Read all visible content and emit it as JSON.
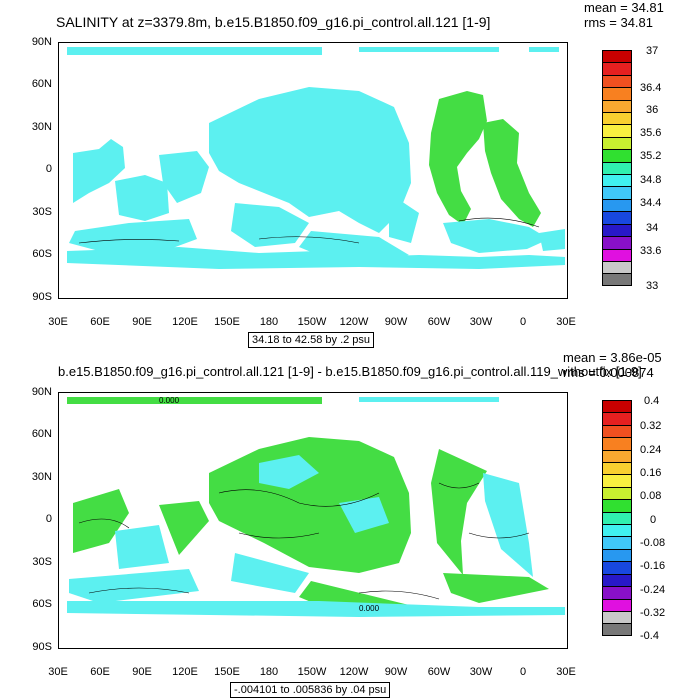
{
  "top": {
    "title": "SALINITY at z=3379.8m, b.e15.B1850.f09_g16.pi_control.all.121 [1-9]",
    "mean": "mean = 34.81",
    "rms": "rms = 34.81",
    "range": "34.18 to 42.58 by .2 psu",
    "legend_labels": [
      "37",
      "36.4",
      "36",
      "35.6",
      "35.2",
      "34.8",
      "34.4",
      "34",
      "33.6",
      "33"
    ],
    "legend_colors": [
      "#c80000",
      "#e62020",
      "#f05020",
      "#f88020",
      "#f8a830",
      "#f8d030",
      "#f8f040",
      "#c8f030",
      "#30e030",
      "#30f0b0",
      "#40f0f0",
      "#40c8f8",
      "#2898f0",
      "#1848e0",
      "#2818c8",
      "#8810c8",
      "#e010e0",
      "#c8c8c8",
      "#787878"
    ],
    "water_color": "#5cf0f0",
    "accent_color": "#44dd44"
  },
  "bottom": {
    "title": "b.e15.B1850.f09_g16.pi_control.all.121 [1-9] - b.e15.B1850.f09_g16.pi_control.all.119_withoutfix [1-9]",
    "mean": "mean = 3.86e-05",
    "rms": "rms = 0.000874",
    "range": "-.004101 to .005836 by .04 psu",
    "legend_labels": [
      "0.4",
      "0.32",
      "0.24",
      "0.16",
      "0.08",
      "0",
      "-0.08",
      "-0.16",
      "-0.24",
      "-0.32",
      "-0.4"
    ],
    "legend_colors": [
      "#c80000",
      "#e62020",
      "#f05020",
      "#f88020",
      "#f8a830",
      "#f8d030",
      "#f8f040",
      "#c8f030",
      "#30e030",
      "#30f0b0",
      "#40f0f0",
      "#40c8f8",
      "#2898f0",
      "#1848e0",
      "#2818c8",
      "#8810c8",
      "#e010e0",
      "#c8c8c8",
      "#787878"
    ],
    "contour_label": "0.000",
    "water_color": "#5cf0f0",
    "accent_color": "#44dd44"
  },
  "lat_labels": [
    "90N",
    "60N",
    "30N",
    "0",
    "30S",
    "60S",
    "90S"
  ],
  "lon_labels": [
    "30E",
    "60E",
    "90E",
    "120E",
    "150E",
    "180",
    "150W",
    "120W",
    "90W",
    "60W",
    "30W",
    "0",
    "30E"
  ]
}
